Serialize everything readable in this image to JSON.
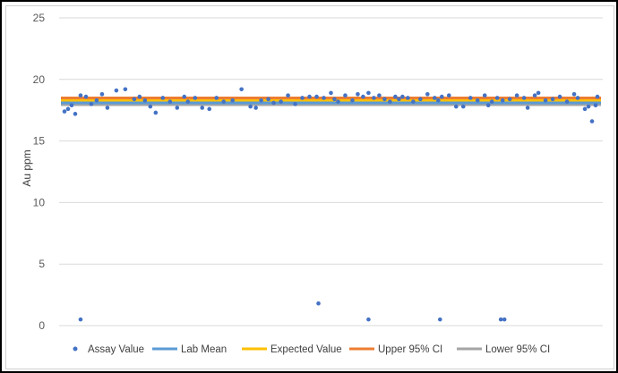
{
  "chart_data": {
    "type": "scatter",
    "title": "",
    "xlabel": "",
    "ylabel": "Au ppm",
    "ylim": [
      0,
      25
    ],
    "yticks": [
      0,
      5,
      10,
      15,
      20,
      25
    ],
    "xlim": [
      0,
      300
    ],
    "grid": true,
    "legend_position": "bottom",
    "series": [
      {
        "name": "Assay Value",
        "kind": "markers",
        "color": "#4472c4",
        "x": [
          1,
          3,
          5,
          7,
          10,
          13,
          16,
          19,
          22,
          25,
          30,
          35,
          40,
          43,
          46,
          49,
          52,
          56,
          60,
          64,
          68,
          70,
          74,
          78,
          82,
          86,
          90,
          95,
          100,
          105,
          108,
          111,
          115,
          118,
          122,
          126,
          130,
          134,
          138,
          142,
          146,
          150,
          152,
          154,
          158,
          162,
          165,
          168,
          171,
          174,
          177,
          180,
          183,
          186,
          188,
          190,
          193,
          196,
          200,
          204,
          208,
          210,
          212,
          216,
          220,
          224,
          228,
          232,
          236,
          238,
          240,
          243,
          246,
          250,
          254,
          258,
          260,
          264,
          266,
          270,
          274,
          278,
          282,
          286,
          288,
          292,
          294,
          296,
          298,
          299,
          10,
          143,
          171,
          211,
          245,
          247
        ],
        "y": [
          17.4,
          17.6,
          17.9,
          17.2,
          18.7,
          18.6,
          18.0,
          18.3,
          18.8,
          17.7,
          19.1,
          19.2,
          18.4,
          18.6,
          18.3,
          17.8,
          17.3,
          18.5,
          18.2,
          17.7,
          18.6,
          18.2,
          18.5,
          17.7,
          17.6,
          18.5,
          18.2,
          18.3,
          19.2,
          17.8,
          17.7,
          18.3,
          18.4,
          18.1,
          18.2,
          18.7,
          18.0,
          18.5,
          18.6,
          18.6,
          18.5,
          18.9,
          18.4,
          18.2,
          18.7,
          18.3,
          18.8,
          18.6,
          18.9,
          18.5,
          18.7,
          18.4,
          18.2,
          18.6,
          18.4,
          18.6,
          18.5,
          18.2,
          18.4,
          18.8,
          18.5,
          18.3,
          18.6,
          18.7,
          17.8,
          17.8,
          18.5,
          18.3,
          18.7,
          17.9,
          18.2,
          18.5,
          18.3,
          18.4,
          18.7,
          18.5,
          17.7,
          18.7,
          18.9,
          18.3,
          18.4,
          18.6,
          18.2,
          18.8,
          18.5,
          17.6,
          17.8,
          16.6,
          17.9,
          18.6,
          0.5,
          1.8,
          0.5,
          0.5,
          0.5,
          0.5
        ]
      },
      {
        "name": "Lab Mean",
        "kind": "line",
        "color": "#5b9bd5",
        "value": 18.1
      },
      {
        "name": "Expected Value",
        "kind": "line",
        "color": "#ffc000",
        "value": 18.3
      },
      {
        "name": "Upper 95% CI",
        "kind": "line",
        "color": "#ed7d31",
        "value": 18.5
      },
      {
        "name": "Lower 95% CI",
        "kind": "line",
        "color": "#a5a5a5",
        "value": 17.95
      }
    ]
  }
}
